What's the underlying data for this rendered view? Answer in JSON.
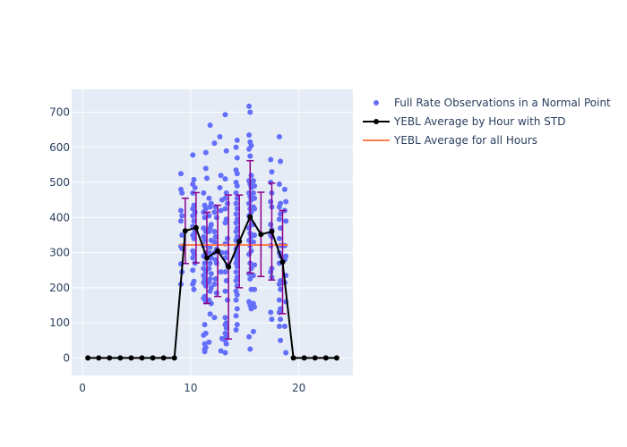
{
  "chart_data": {
    "type": "scatter",
    "xlim": [
      -1,
      25
    ],
    "ylim": [
      -50,
      765
    ],
    "x_ticks": [
      0,
      10,
      20
    ],
    "y_ticks": [
      0,
      100,
      200,
      300,
      400,
      500,
      600,
      700
    ],
    "grid": true,
    "legend_position": "right",
    "colors": {
      "plot_bg": "#e5ecf6",
      "grid": "#ffffff",
      "scatter": "#636efa",
      "average": "#000000",
      "std": "#8b008b",
      "overall": "#ff7f50",
      "text": "#2a3f5f"
    },
    "legend": [
      {
        "key": "scatter",
        "label": "Full Rate Observations in a Normal Point"
      },
      {
        "key": "average",
        "label": "YEBL Average by Hour with STD"
      },
      {
        "key": "overall",
        "label": "YEBL Average for all Hours"
      }
    ],
    "hourly_average": {
      "x": [
        0.5,
        1.5,
        2.5,
        3.5,
        4.5,
        5.5,
        6.5,
        7.5,
        8.5,
        9.5,
        10.5,
        11.5,
        12.5,
        13.5,
        14.5,
        15.5,
        16.5,
        17.5,
        18.5,
        19.5,
        20.5,
        21.5,
        22.5,
        23.5
      ],
      "y": [
        0,
        0,
        0,
        0,
        0,
        0,
        0,
        0,
        0,
        362,
        371,
        285,
        305,
        259,
        332,
        402,
        352,
        360,
        273,
        0,
        0,
        0,
        0,
        0
      ],
      "std": [
        0,
        0,
        0,
        0,
        0,
        0,
        0,
        0,
        0,
        93,
        100,
        130,
        130,
        205,
        132,
        160,
        120,
        138,
        147,
        0,
        0,
        0,
        0,
        0
      ]
    },
    "overall_average": {
      "x": [
        9,
        19
      ],
      "y": 322
    },
    "scatter_points": [
      [
        9.1,
        525
      ],
      [
        9.1,
        480
      ],
      [
        9.2,
        470
      ],
      [
        9.1,
        420
      ],
      [
        9.2,
        405
      ],
      [
        9.1,
        390
      ],
      [
        9.2,
        350
      ],
      [
        9.1,
        318
      ],
      [
        9.2,
        312
      ],
      [
        9.1,
        268
      ],
      [
        9.2,
        245
      ],
      [
        9.1,
        210
      ],
      [
        10.2,
        578
      ],
      [
        10.3,
        508
      ],
      [
        10.2,
        495
      ],
      [
        10.4,
        485
      ],
      [
        10.2,
        470
      ],
      [
        10.3,
        435
      ],
      [
        10.2,
        425
      ],
      [
        10.4,
        415
      ],
      [
        10.2,
        405
      ],
      [
        10.3,
        390
      ],
      [
        10.2,
        375
      ],
      [
        10.4,
        360
      ],
      [
        10.2,
        350
      ],
      [
        10.3,
        340
      ],
      [
        10.2,
        305
      ],
      [
        10.3,
        295
      ],
      [
        10.2,
        285
      ],
      [
        10.4,
        270
      ],
      [
        10.2,
        250
      ],
      [
        10.3,
        218
      ],
      [
        10.2,
        210
      ],
      [
        10.3,
        195
      ],
      [
        11.2,
        470
      ],
      [
        11.3,
        435
      ],
      [
        11.4,
        425
      ],
      [
        11.2,
        415
      ],
      [
        11.3,
        400
      ],
      [
        11.2,
        370
      ],
      [
        11.4,
        360
      ],
      [
        11.2,
        345
      ],
      [
        11.3,
        335
      ],
      [
        11.2,
        320
      ],
      [
        11.4,
        300
      ],
      [
        11.2,
        290
      ],
      [
        11.3,
        270
      ],
      [
        11.2,
        255
      ],
      [
        11.4,
        245
      ],
      [
        11.2,
        235
      ],
      [
        11.3,
        225
      ],
      [
        11.2,
        215
      ],
      [
        11.4,
        205
      ],
      [
        11.3,
        175
      ],
      [
        11.2,
        170
      ],
      [
        11.4,
        160
      ],
      [
        11.3,
        95
      ],
      [
        11.2,
        65
      ],
      [
        11.4,
        70
      ],
      [
        11.3,
        40
      ],
      [
        11.4,
        30
      ],
      [
        11.3,
        25
      ],
      [
        11.3,
        18
      ],
      [
        11.4,
        540
      ],
      [
        11.4,
        585
      ],
      [
        11.5,
        512
      ],
      [
        11.8,
        663
      ],
      [
        11.7,
        455
      ],
      [
        11.9,
        440
      ],
      [
        11.8,
        430
      ],
      [
        11.7,
        405
      ],
      [
        11.9,
        380
      ],
      [
        11.8,
        370
      ],
      [
        11.7,
        360
      ],
      [
        11.9,
        335
      ],
      [
        11.8,
        315
      ],
      [
        11.7,
        300
      ],
      [
        11.9,
        285
      ],
      [
        11.8,
        270
      ],
      [
        11.7,
        255
      ],
      [
        11.9,
        240
      ],
      [
        11.8,
        225
      ],
      [
        11.7,
        215
      ],
      [
        11.9,
        200
      ],
      [
        11.8,
        190
      ],
      [
        11.7,
        165
      ],
      [
        11.9,
        155
      ],
      [
        11.8,
        125
      ],
      [
        11.7,
        45
      ],
      [
        12.2,
        612
      ],
      [
        12.3,
        430
      ],
      [
        12.2,
        415
      ],
      [
        12.4,
        400
      ],
      [
        12.2,
        360
      ],
      [
        12.3,
        345
      ],
      [
        12.2,
        330
      ],
      [
        12.4,
        310
      ],
      [
        12.2,
        300
      ],
      [
        12.3,
        280
      ],
      [
        12.4,
        270
      ],
      [
        12.3,
        225
      ],
      [
        12.2,
        210
      ],
      [
        12.4,
        185
      ],
      [
        12.2,
        115
      ],
      [
        12.7,
        630
      ],
      [
        12.8,
        520
      ],
      [
        12.7,
        485
      ],
      [
        12.9,
        450
      ],
      [
        12.8,
        420
      ],
      [
        12.9,
        300
      ],
      [
        12.8,
        245
      ],
      [
        12.9,
        55
      ],
      [
        12.8,
        20
      ],
      [
        13.2,
        693
      ],
      [
        13.3,
        590
      ],
      [
        13.2,
        510
      ],
      [
        13.3,
        470
      ],
      [
        13.2,
        455
      ],
      [
        13.4,
        440
      ],
      [
        13.2,
        425
      ],
      [
        13.3,
        395
      ],
      [
        13.2,
        385
      ],
      [
        13.4,
        340
      ],
      [
        13.2,
        325
      ],
      [
        13.3,
        300
      ],
      [
        13.2,
        285
      ],
      [
        13.4,
        265
      ],
      [
        13.2,
        245
      ],
      [
        13.3,
        220
      ],
      [
        13.2,
        190
      ],
      [
        13.4,
        165
      ],
      [
        13.2,
        115
      ],
      [
        13.3,
        100
      ],
      [
        13.2,
        95
      ],
      [
        13.3,
        85
      ],
      [
        13.2,
        70
      ],
      [
        13.3,
        60
      ],
      [
        13.2,
        50
      ],
      [
        13.3,
        40
      ],
      [
        13.2,
        15
      ],
      [
        14.3,
        620
      ],
      [
        14.2,
        600
      ],
      [
        14.3,
        570
      ],
      [
        14.2,
        535
      ],
      [
        14.3,
        525
      ],
      [
        14.2,
        500
      ],
      [
        14.3,
        490
      ],
      [
        14.2,
        470
      ],
      [
        14.3,
        455
      ],
      [
        14.2,
        440
      ],
      [
        14.3,
        425
      ],
      [
        14.2,
        410
      ],
      [
        14.3,
        395
      ],
      [
        14.2,
        385
      ],
      [
        14.3,
        370
      ],
      [
        14.2,
        360
      ],
      [
        14.3,
        345
      ],
      [
        14.2,
        335
      ],
      [
        14.3,
        320
      ],
      [
        14.2,
        310
      ],
      [
        14.3,
        300
      ],
      [
        14.2,
        290
      ],
      [
        14.3,
        280
      ],
      [
        14.2,
        270
      ],
      [
        14.3,
        260
      ],
      [
        14.2,
        245
      ],
      [
        14.3,
        230
      ],
      [
        14.2,
        220
      ],
      [
        14.3,
        205
      ],
      [
        14.2,
        190
      ],
      [
        14.3,
        180
      ],
      [
        14.2,
        165
      ],
      [
        14.3,
        140
      ],
      [
        14.2,
        120
      ],
      [
        14.3,
        95
      ],
      [
        14.2,
        80
      ],
      [
        15.4,
        717
      ],
      [
        15.5,
        700
      ],
      [
        15.4,
        635
      ],
      [
        15.5,
        615
      ],
      [
        15.6,
        605
      ],
      [
        15.4,
        595
      ],
      [
        15.5,
        575
      ],
      [
        15.6,
        520
      ],
      [
        15.4,
        505
      ],
      [
        15.5,
        495
      ],
      [
        15.6,
        485
      ],
      [
        15.4,
        470
      ],
      [
        15.5,
        460
      ],
      [
        15.6,
        450
      ],
      [
        15.4,
        440
      ],
      [
        15.5,
        425
      ],
      [
        15.6,
        415
      ],
      [
        15.4,
        405
      ],
      [
        15.5,
        395
      ],
      [
        15.6,
        380
      ],
      [
        15.4,
        370
      ],
      [
        15.5,
        355
      ],
      [
        15.6,
        345
      ],
      [
        15.4,
        335
      ],
      [
        15.5,
        320
      ],
      [
        15.6,
        305
      ],
      [
        15.4,
        295
      ],
      [
        15.5,
        270
      ],
      [
        15.6,
        255
      ],
      [
        15.4,
        240
      ],
      [
        15.5,
        225
      ],
      [
        15.6,
        195
      ],
      [
        15.4,
        160
      ],
      [
        15.5,
        150
      ],
      [
        15.6,
        140
      ],
      [
        15.4,
        60
      ],
      [
        15.5,
        25
      ],
      [
        15.8,
        505
      ],
      [
        15.9,
        490
      ],
      [
        15.8,
        470
      ],
      [
        15.9,
        455
      ],
      [
        15.8,
        430
      ],
      [
        15.9,
        425
      ],
      [
        15.8,
        380
      ],
      [
        15.9,
        350
      ],
      [
        15.8,
        330
      ],
      [
        15.9,
        265
      ],
      [
        15.8,
        235
      ],
      [
        15.9,
        195
      ],
      [
        15.8,
        155
      ],
      [
        15.9,
        145
      ],
      [
        15.8,
        75
      ],
      [
        17.4,
        565
      ],
      [
        17.5,
        530
      ],
      [
        17.4,
        500
      ],
      [
        17.5,
        470
      ],
      [
        17.4,
        445
      ],
      [
        17.5,
        430
      ],
      [
        17.4,
        380
      ],
      [
        17.5,
        365
      ],
      [
        17.4,
        350
      ],
      [
        17.5,
        345
      ],
      [
        17.4,
        320
      ],
      [
        17.5,
        255
      ],
      [
        17.4,
        245
      ],
      [
        17.5,
        230
      ],
      [
        17.4,
        130
      ],
      [
        17.5,
        110
      ],
      [
        18.2,
        630
      ],
      [
        18.3,
        560
      ],
      [
        18.2,
        495
      ],
      [
        18.3,
        440
      ],
      [
        18.2,
        430
      ],
      [
        18.3,
        410
      ],
      [
        18.2,
        395
      ],
      [
        18.3,
        370
      ],
      [
        18.2,
        340
      ],
      [
        18.3,
        320
      ],
      [
        18.2,
        300
      ],
      [
        18.3,
        290
      ],
      [
        18.2,
        270
      ],
      [
        18.3,
        220
      ],
      [
        18.2,
        210
      ],
      [
        18.3,
        195
      ],
      [
        18.2,
        165
      ],
      [
        18.3,
        140
      ],
      [
        18.2,
        130
      ],
      [
        18.3,
        110
      ],
      [
        18.2,
        90
      ],
      [
        18.3,
        50
      ],
      [
        18.7,
        480
      ],
      [
        18.8,
        445
      ],
      [
        18.7,
        420
      ],
      [
        18.8,
        390
      ],
      [
        18.7,
        320
      ],
      [
        18.8,
        290
      ],
      [
        18.7,
        280
      ],
      [
        18.8,
        235
      ],
      [
        18.7,
        215
      ],
      [
        18.8,
        160
      ],
      [
        18.7,
        90
      ],
      [
        18.8,
        15
      ]
    ]
  }
}
